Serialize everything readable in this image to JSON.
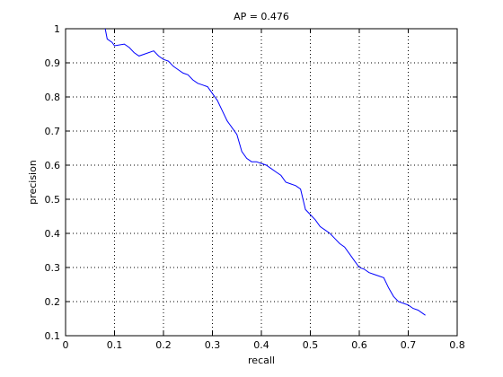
{
  "chart_data": {
    "type": "line",
    "title": "AP = 0.476",
    "xlabel": "recall",
    "ylabel": "precision",
    "x": [
      0.081,
      0.085,
      0.095,
      0.1,
      0.12,
      0.13,
      0.14,
      0.15,
      0.16,
      0.18,
      0.19,
      0.2,
      0.21,
      0.22,
      0.23,
      0.24,
      0.25,
      0.26,
      0.27,
      0.28,
      0.29,
      0.3,
      0.31,
      0.32,
      0.33,
      0.34,
      0.35,
      0.36,
      0.37,
      0.38,
      0.39,
      0.4,
      0.41,
      0.42,
      0.43,
      0.44,
      0.45,
      0.46,
      0.47,
      0.48,
      0.49,
      0.5,
      0.51,
      0.52,
      0.53,
      0.54,
      0.55,
      0.56,
      0.57,
      0.58,
      0.59,
      0.6,
      0.61,
      0.62,
      0.63,
      0.64,
      0.65,
      0.66,
      0.67,
      0.68,
      0.69,
      0.7,
      0.71,
      0.72,
      0.735
    ],
    "values": [
      1.0,
      0.97,
      0.96,
      0.95,
      0.955,
      0.945,
      0.93,
      0.92,
      0.925,
      0.935,
      0.92,
      0.91,
      0.905,
      0.89,
      0.88,
      0.87,
      0.865,
      0.85,
      0.84,
      0.835,
      0.83,
      0.81,
      0.79,
      0.76,
      0.73,
      0.71,
      0.69,
      0.64,
      0.62,
      0.61,
      0.61,
      0.605,
      0.6,
      0.59,
      0.58,
      0.57,
      0.55,
      0.545,
      0.54,
      0.53,
      0.47,
      0.455,
      0.44,
      0.42,
      0.41,
      0.4,
      0.385,
      0.37,
      0.36,
      0.34,
      0.32,
      0.3,
      0.295,
      0.285,
      0.28,
      0.275,
      0.27,
      0.24,
      0.215,
      0.2,
      0.195,
      0.19,
      0.18,
      0.175,
      0.16
    ],
    "color": "#0000ff",
    "xlim": [
      0,
      0.8
    ],
    "xticks": [
      0,
      0.1,
      0.2,
      0.3,
      0.4,
      0.5,
      0.6,
      0.7,
      0.8
    ],
    "ylim": [
      0.1,
      1
    ],
    "yticks": [
      0.1,
      0.2,
      0.3,
      0.4,
      0.5,
      0.6,
      0.7,
      0.8,
      0.9,
      1
    ],
    "grid": true
  }
}
